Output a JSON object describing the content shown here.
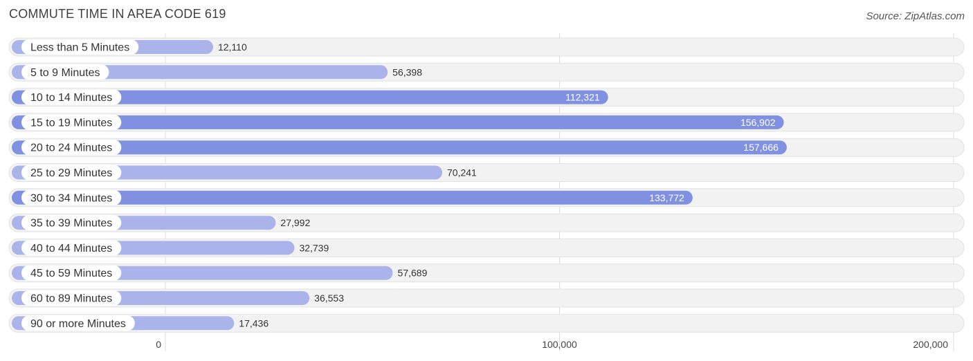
{
  "chart_data": {
    "type": "bar",
    "orientation": "horizontal",
    "title": "COMMUTE TIME IN AREA CODE 619",
    "source": "Source: ZipAtlas.com",
    "xlabel": "",
    "ylabel": "",
    "xlim": [
      0,
      200000
    ],
    "grid": true,
    "x_ticks": [
      {
        "value": 0,
        "label": "0"
      },
      {
        "value": 100000,
        "label": "100,000"
      },
      {
        "value": 200000,
        "label": "200,000"
      }
    ],
    "categories": [
      "Less than 5 Minutes",
      "5 to 9 Minutes",
      "10 to 14 Minutes",
      "15 to 19 Minutes",
      "20 to 24 Minutes",
      "25 to 29 Minutes",
      "30 to 34 Minutes",
      "35 to 39 Minutes",
      "40 to 44 Minutes",
      "45 to 59 Minutes",
      "60 to 89 Minutes",
      "90 or more Minutes"
    ],
    "values": [
      12110,
      56398,
      112321,
      156902,
      157666,
      70241,
      133772,
      27992,
      32739,
      57689,
      36553,
      17436
    ],
    "value_labels": [
      "12,110",
      "56,398",
      "112,321",
      "156,902",
      "157,666",
      "70,241",
      "133,772",
      "27,992",
      "32,739",
      "57,689",
      "36,553",
      "17,436"
    ],
    "colors": {
      "bar_light": "#aab4ea",
      "bar_dark": "#7f91e0",
      "row_background": "#f2f2f2",
      "row_border": "#e2e2e2",
      "grid": "#dddddd",
      "label_text": "#333333",
      "value_text_outside": "#333333",
      "value_text_inside": "#ffffff"
    }
  }
}
